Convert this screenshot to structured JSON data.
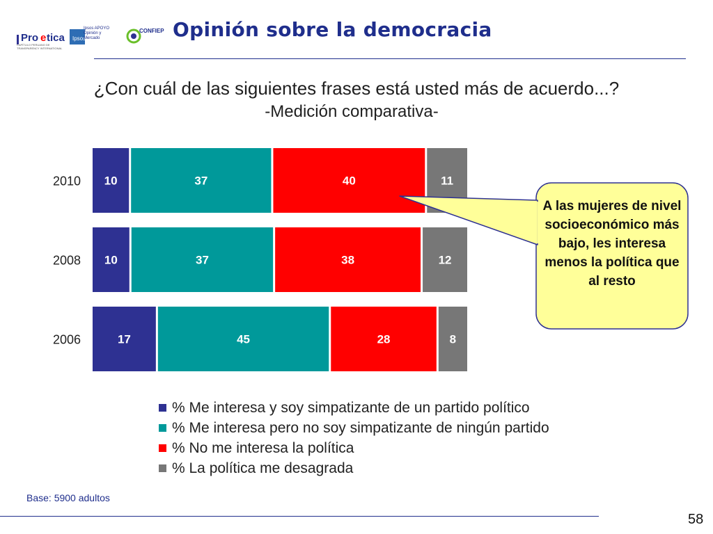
{
  "header": {
    "title": "Opinión sobre la democracia",
    "logos": [
      {
        "name": "Proetica",
        "caption": "CAPÍTULO PERUANO DE TRANSPARENCY INTERNATIONAL"
      },
      {
        "name": "Ipsos",
        "caption": "Ipsos APOYO Opinión y Mercado"
      },
      {
        "name": "CONFIEP"
      }
    ]
  },
  "question": "¿Con cuál de las siguientes frases está usted más de acuerdo...?",
  "subtitle": "-Medición comparativa-",
  "colors": {
    "series1": "#2e3192",
    "series2": "#00999a",
    "series3": "#ff0000",
    "series4": "#777777",
    "title": "#1f2e8c",
    "callout_fill": "#ffff99"
  },
  "chart_data": {
    "type": "bar",
    "orientation": "horizontal",
    "stacked": true,
    "categories": [
      "2010",
      "2008",
      "2006"
    ],
    "series": [
      {
        "name": "% Me interesa y soy simpatizante de un partido político",
        "values": [
          10,
          10,
          17
        ]
      },
      {
        "name": "% Me interesa pero no soy simpatizante de ningún partido",
        "values": [
          37,
          37,
          45
        ]
      },
      {
        "name": "% No me interesa la política",
        "values": [
          40,
          38,
          28
        ]
      },
      {
        "name": "% La política me desagrada",
        "values": [
          11,
          12,
          8
        ]
      }
    ],
    "legend_position": "bottom",
    "grid": false
  },
  "callout": {
    "text": "A las mujeres de nivel socioeconómico más bajo, les interesa menos la política que al resto"
  },
  "footer": {
    "base_note": "Base: 5900 adultos",
    "page_number": "58"
  }
}
